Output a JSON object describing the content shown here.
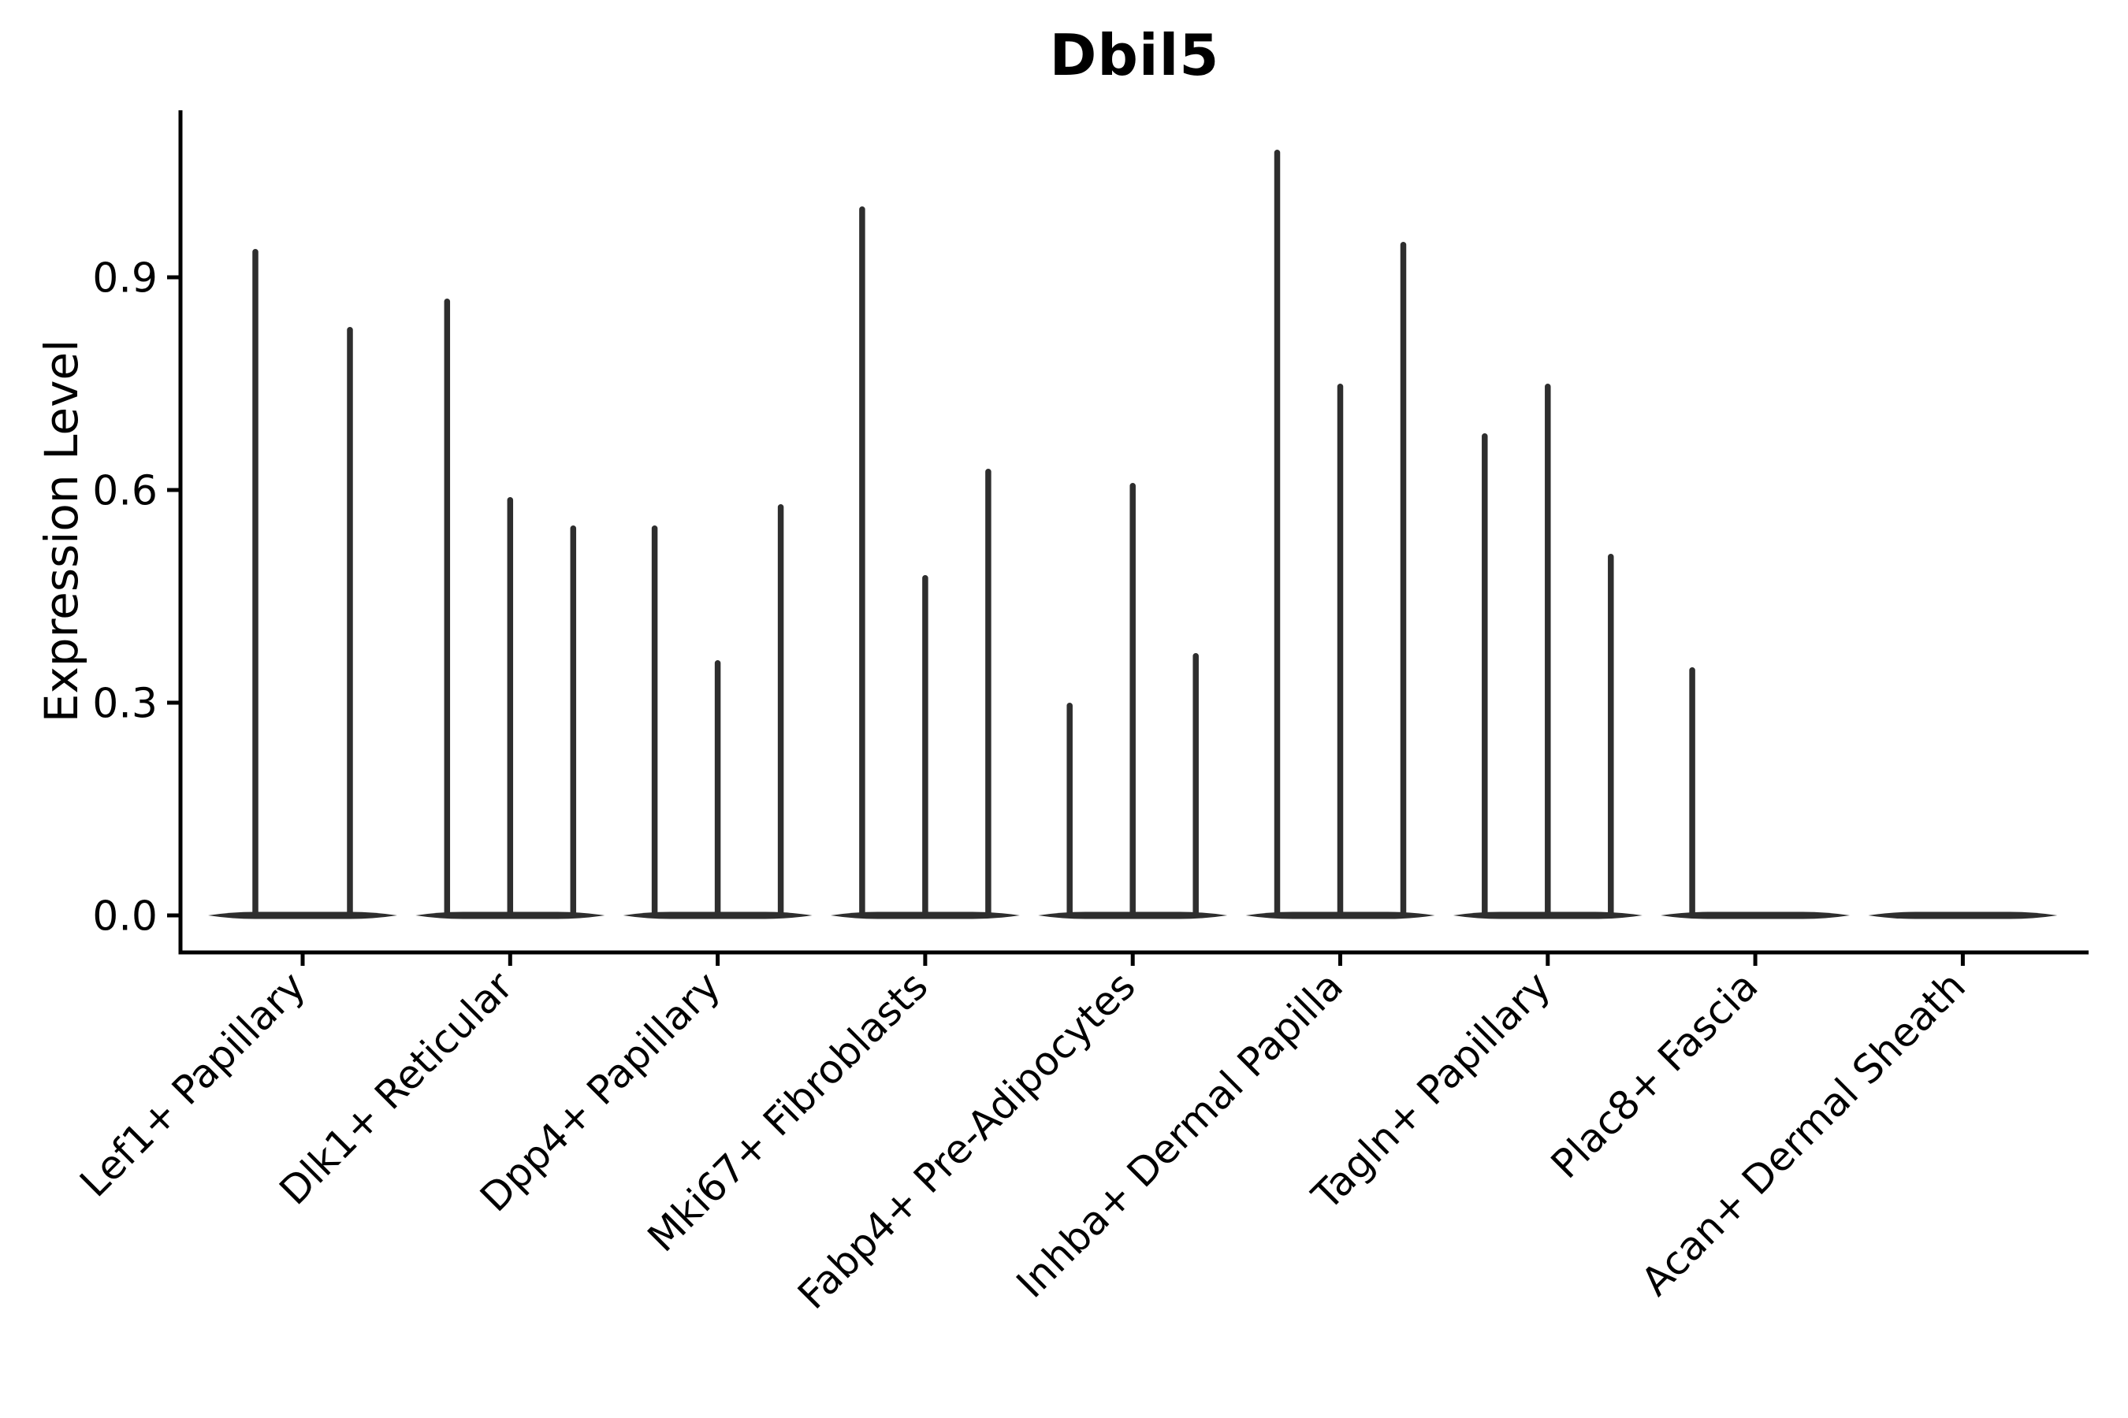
{
  "figure": {
    "background": "#ffffff"
  },
  "chart_data": {
    "type": "violin",
    "title": "Dbil5",
    "xlabel": "",
    "ylabel": "Expression Level",
    "grid": false,
    "legend": "none",
    "x_tick_rotation": 45,
    "ylim": [
      -0.052,
      1.136
    ],
    "yticks": [
      {
        "label": "0.0",
        "value": 0.0
      },
      {
        "label": "0.3",
        "value": 0.3
      },
      {
        "label": "0.6",
        "value": 0.6
      },
      {
        "label": "0.9",
        "value": 0.9
      }
    ],
    "categories": [
      "Lef1+ Papillary",
      "Dlk1+ Reticular",
      "Dpp4+ Papillary",
      "Mki67+ Fibroblasts",
      "Fabp4+ Pre-Adipocytes",
      "Inhba+ Dermal Papilla",
      "Tagln+ Papillary",
      "Plac8+ Fascia",
      "Acan+ Dermal Sheath"
    ],
    "groups": [
      {
        "category": "Lef1+ Papillary",
        "violin_maxima": [
          0.94,
          0.83
        ]
      },
      {
        "category": "Dlk1+ Reticular",
        "violin_maxima": [
          0.87,
          0.59,
          0.55
        ]
      },
      {
        "category": "Dpp4+ Papillary",
        "violin_maxima": [
          0.55,
          0.36,
          0.58
        ]
      },
      {
        "category": "Mki67+ Fibroblasts",
        "violin_maxima": [
          1.0,
          0.48,
          0.63
        ]
      },
      {
        "category": "Fabp4+ Pre-Adipocytes",
        "violin_maxima": [
          0.3,
          0.61,
          0.37
        ]
      },
      {
        "category": "Inhba+ Dermal Papilla",
        "violin_maxima": [
          1.08,
          0.75,
          0.95
        ]
      },
      {
        "category": "Tagln+ Papillary",
        "violin_maxima": [
          0.68,
          0.75,
          0.51
        ]
      },
      {
        "category": "Plac8+ Fascia",
        "violin_maxima": [
          0.35,
          0,
          0
        ]
      },
      {
        "category": "Acan+ Dermal Sheath",
        "violin_maxima": [
          0,
          0,
          0
        ]
      }
    ],
    "colors": {
      "axis": "#000000",
      "violin_stroke": "#2e2e2e",
      "text": "#000000"
    }
  }
}
